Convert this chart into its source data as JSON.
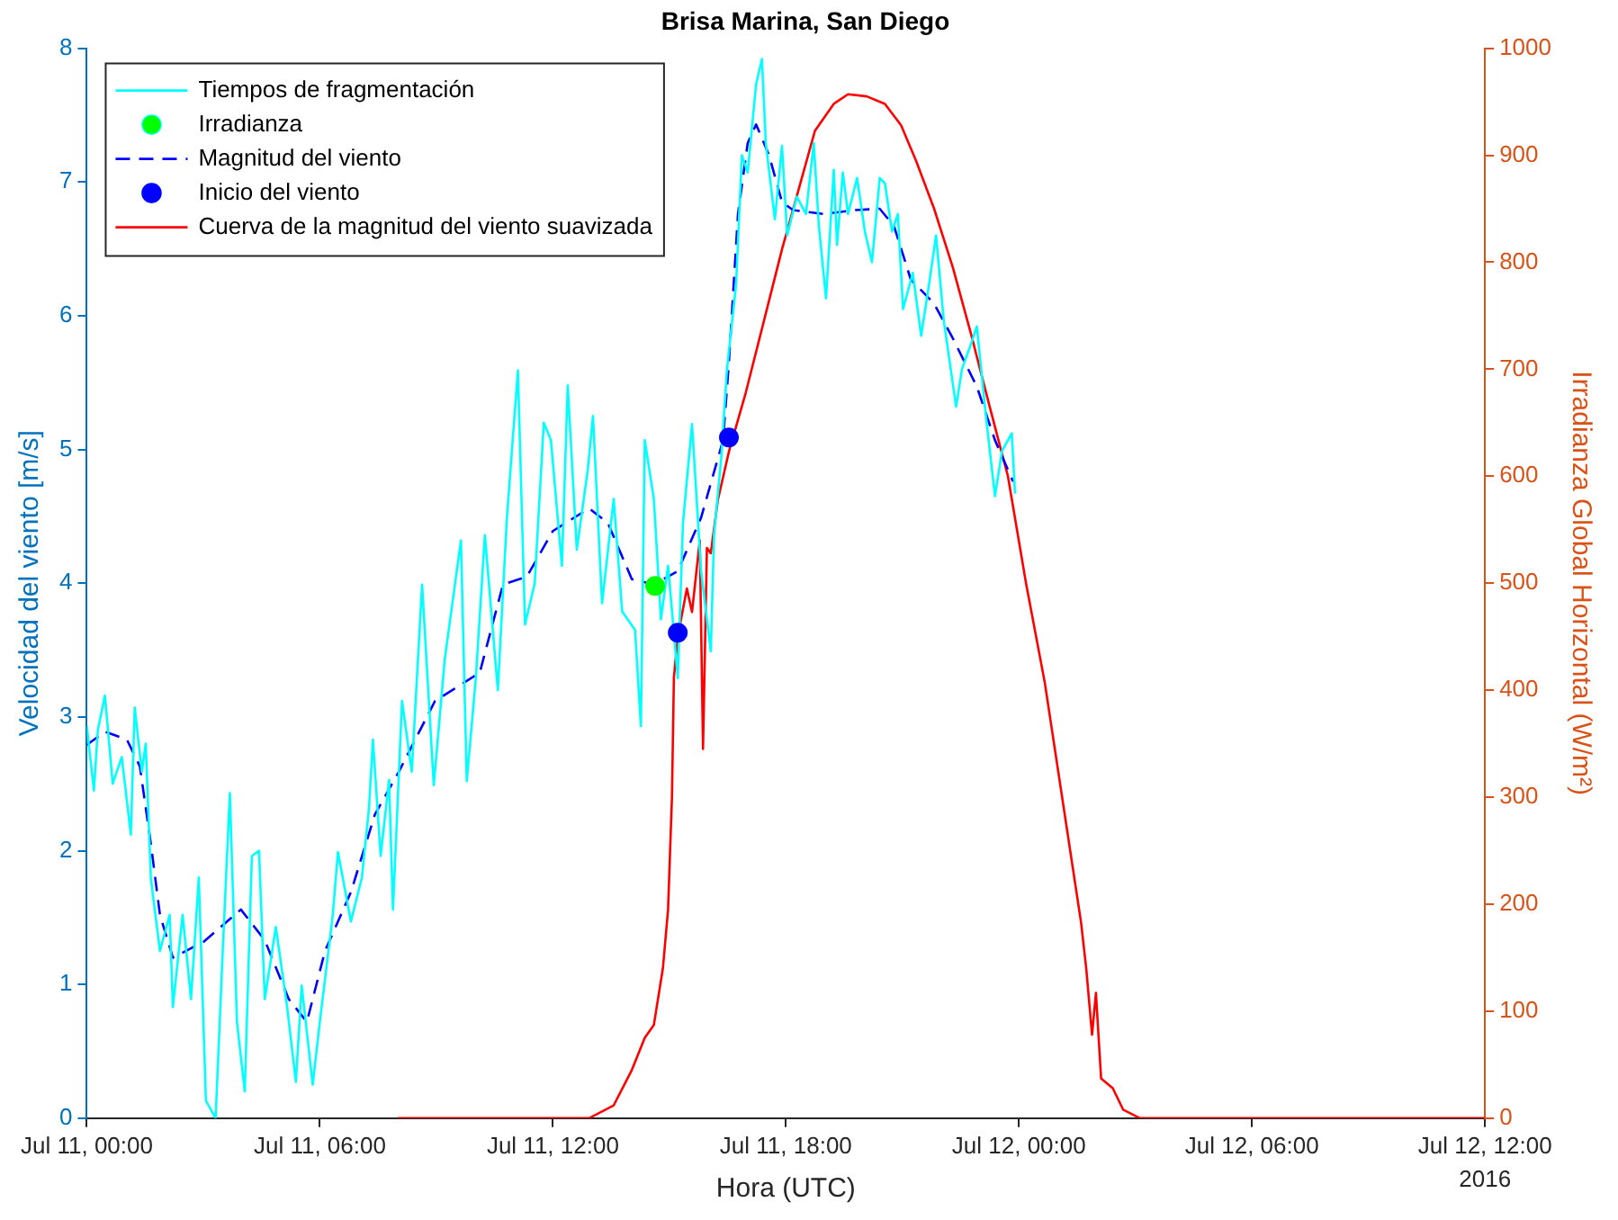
{
  "chart_data": {
    "type": "line",
    "title": "Brisa Marina, San Diego",
    "xlabel": "Hora (UTC)",
    "ylabel": "Velocidad del viento [m/s]",
    "y2label": "Irradianza Global Horizontal (W/m²)",
    "xlim": [
      "2016-07-11T00:00",
      "2016-07-12T12:00"
    ],
    "xticks": [
      {
        "value": "2016-07-11T00:00",
        "label": "Jul 11, 00:00"
      },
      {
        "value": "2016-07-11T06:00",
        "label": "Jul 11, 06:00"
      },
      {
        "value": "2016-07-11T12:00",
        "label": "Jul 11, 12:00"
      },
      {
        "value": "2016-07-11T18:00",
        "label": "Jul 11, 18:00"
      },
      {
        "value": "2016-07-12T00:00",
        "label": "Jul 12, 00:00"
      },
      {
        "value": "2016-07-12T06:00",
        "label": "Jul 12, 06:00"
      },
      {
        "value": "2016-07-12T12:00",
        "label": "Jul 12, 12:00"
      }
    ],
    "ylim": [
      0,
      8
    ],
    "yticks": [
      0,
      1,
      2,
      3,
      4,
      5,
      6,
      7,
      8
    ],
    "y2lim": [
      0,
      1000
    ],
    "y2ticks": [
      0,
      100,
      200,
      300,
      400,
      500,
      600,
      700,
      800,
      900,
      1000
    ],
    "grid": false,
    "legend": "top left",
    "marker": "none",
    "line_style": "solid",
    "annotations": [
      "2016"
    ],
    "series": [
      {
        "name": "Tiempos de fragmentación",
        "color": "#00ffff",
        "x": [
          "2016-07-11T00:00",
          "2016-07-11T00:11",
          "2016-07-11T00:17",
          "2016-07-11T00:28",
          "2016-07-11T00:40",
          "2016-07-11T00:54",
          "2016-07-11T01:08",
          "2016-07-11T01:14",
          "2016-07-11T01:25",
          "2016-07-11T01:31",
          "2016-07-11T01:39",
          "2016-07-11T01:53",
          "2016-07-11T02:08",
          "2016-07-11T02:13",
          "2016-07-11T02:28",
          "2016-07-11T02:41",
          "2016-07-11T02:53",
          "2016-07-11T03:04",
          "2016-07-11T03:19",
          "2016-07-11T03:30",
          "2016-07-11T03:41",
          "2016-07-11T03:52",
          "2016-07-11T04:04",
          "2016-07-11T04:15",
          "2016-07-11T04:26",
          "2016-07-11T04:35",
          "2016-07-11T04:52",
          "2016-07-11T05:09",
          "2016-07-11T05:23",
          "2016-07-11T05:32",
          "2016-07-11T05:49",
          "2016-07-11T06:00",
          "2016-07-11T06:20",
          "2016-07-11T06:28",
          "2016-07-11T06:48",
          "2016-07-11T07:05",
          "2016-07-11T07:16",
          "2016-07-11T07:22",
          "2016-07-11T07:34",
          "2016-07-11T07:47",
          "2016-07-11T07:53",
          "2016-07-11T08:07",
          "2016-07-11T08:22",
          "2016-07-11T08:38",
          "2016-07-11T08:56",
          "2016-07-11T09:13",
          "2016-07-11T09:38",
          "2016-07-11T09:47",
          "2016-07-11T10:01",
          "2016-07-11T10:15",
          "2016-07-11T10:35",
          "2016-07-11T10:49",
          "2016-07-11T11:06",
          "2016-07-11T11:17",
          "2016-07-11T11:32",
          "2016-07-11T11:46",
          "2016-07-11T11:57",
          "2016-07-11T12:14",
          "2016-07-11T12:23",
          "2016-07-11T12:37",
          "2016-07-11T12:54",
          "2016-07-11T13:02",
          "2016-07-11T13:16",
          "2016-07-11T13:34",
          "2016-07-11T13:47",
          "2016-07-11T14:07",
          "2016-07-11T14:16",
          "2016-07-11T14:22",
          "2016-07-11T14:36",
          "2016-07-11T14:47",
          "2016-07-11T14:58",
          "2016-07-11T15:13",
          "2016-07-11T15:21",
          "2016-07-11T15:35",
          "2016-07-11T15:49",
          "2016-07-11T16:04",
          "2016-07-11T16:09",
          "2016-07-11T16:20",
          "2016-07-11T16:29",
          "2016-07-11T16:43",
          "2016-07-11T16:52",
          "2016-07-11T17:01",
          "2016-07-11T17:14",
          "2016-07-11T17:23",
          "2016-07-11T17:29",
          "2016-07-11T17:43",
          "2016-07-11T17:54",
          "2016-07-11T18:02",
          "2016-07-11T18:17",
          "2016-07-11T18:31",
          "2016-07-11T18:43",
          "2016-07-11T18:51",
          "2016-07-11T19:02",
          "2016-07-11T19:14",
          "2016-07-11T19:19",
          "2016-07-11T19:28",
          "2016-07-11T19:36",
          "2016-07-11T19:50",
          "2016-07-11T20:02",
          "2016-07-11T20:13",
          "2016-07-11T20:25",
          "2016-07-11T20:33",
          "2016-07-11T20:44",
          "2016-07-11T20:53",
          "2016-07-11T21:01",
          "2016-07-11T21:16",
          "2016-07-11T21:29",
          "2016-07-11T21:41",
          "2016-07-11T21:52",
          "2016-07-11T22:04",
          "2016-07-11T22:23",
          "2016-07-11T22:32",
          "2016-07-11T22:46",
          "2016-07-11T22:55",
          "2016-07-11T23:09",
          "2016-07-11T23:23",
          "2016-07-11T23:34",
          "2016-07-11T23:49",
          "2016-07-11T23:54"
        ],
        "values": [
          2.93,
          2.45,
          2.9,
          3.16,
          2.5,
          2.7,
          2.12,
          3.07,
          2.59,
          2.8,
          1.79,
          1.25,
          1.52,
          0.83,
          1.52,
          0.89,
          1.8,
          0.13,
          0,
          1.25,
          2.43,
          0.72,
          0.2,
          1.96,
          2.0,
          0.89,
          1.43,
          0.85,
          0.27,
          0.99,
          0.25,
          0.72,
          1.52,
          1.99,
          1.47,
          1.8,
          2.32,
          2.83,
          1.96,
          2.53,
          1.56,
          3.12,
          2.59,
          3.99,
          2.49,
          3.43,
          4.32,
          2.52,
          3.29,
          4.36,
          3.2,
          4.49,
          5.59,
          3.69,
          4.0,
          5.2,
          5.07,
          4.13,
          5.48,
          4.25,
          4.85,
          5.25,
          3.85,
          4.63,
          3.79,
          3.65,
          2.93,
          5.07,
          4.63,
          3.73,
          4.13,
          3.29,
          4.45,
          5.19,
          4.09,
          3.49,
          4.36,
          4.93,
          5.6,
          6.23,
          7.2,
          7.07,
          7.73,
          7.92,
          7.29,
          6.72,
          7.27,
          6.6,
          6.89,
          6.76,
          7.29,
          6.67,
          6.13,
          7.09,
          6.53,
          7.07,
          6.76,
          7.03,
          6.63,
          6.4,
          7.03,
          6.99,
          6.63,
          6.76,
          6.05,
          6.32,
          5.85,
          6.23,
          6.6,
          5.96,
          5.32,
          5.6,
          5.79,
          5.92,
          5.25,
          4.65,
          4.99,
          5.12,
          4.67
        ]
      },
      {
        "name": "Irradianza",
        "type": "scatter",
        "marker": "circle",
        "color": "#00ff00",
        "x": [
          "2016-07-11T14:38"
        ],
        "values": [
          3.98
        ]
      },
      {
        "name": "Magnitud del viento",
        "line_style": "dashed",
        "color": "#0000ff",
        "x": [
          "2016-07-11T00:00",
          "2016-07-11T00:28",
          "2016-07-11T01:02",
          "2016-07-11T01:22",
          "2016-07-11T01:39",
          "2016-07-11T01:53",
          "2016-07-11T02:13",
          "2016-07-11T03:01",
          "2016-07-11T03:58",
          "2016-07-11T04:35",
          "2016-07-11T05:12",
          "2016-07-11T05:40",
          "2016-07-11T06:08",
          "2016-07-11T06:48",
          "2016-07-11T07:25",
          "2016-07-11T08:02",
          "2016-07-11T08:58",
          "2016-07-11T10:07",
          "2016-07-11T10:43",
          "2016-07-11T11:20",
          "2016-07-11T12:00",
          "2016-07-11T12:56",
          "2016-07-11T13:25",
          "2016-07-11T14:02",
          "2016-07-11T14:36",
          "2016-07-11T15:13",
          "2016-07-11T15:49",
          "2016-07-11T16:23",
          "2016-07-11T16:32",
          "2016-07-11T16:46",
          "2016-07-11T17:01",
          "2016-07-11T17:14",
          "2016-07-11T17:34",
          "2016-07-11T17:54",
          "2016-07-11T18:11",
          "2016-07-11T18:59",
          "2016-07-11T19:47",
          "2016-07-11T20:25",
          "2016-07-11T20:47",
          "2016-07-11T21:13",
          "2016-07-11T21:49",
          "2016-07-11T22:18",
          "2016-07-11T22:55",
          "2016-07-11T23:23",
          "2016-07-11T23:51"
        ],
        "values": [
          2.79,
          2.89,
          2.83,
          2.63,
          2.05,
          1.52,
          1.2,
          1.32,
          1.56,
          1.33,
          0.89,
          0.72,
          1.25,
          1.69,
          2.27,
          2.59,
          3.12,
          3.33,
          3.99,
          4.05,
          4.39,
          4.56,
          4.45,
          4.03,
          3.99,
          4.09,
          4.49,
          5.07,
          5.65,
          6.76,
          7.29,
          7.43,
          7.2,
          6.85,
          6.79,
          6.76,
          6.79,
          6.8,
          6.67,
          6.27,
          6.09,
          5.83,
          5.47,
          5.07,
          4.76
        ]
      },
      {
        "name": "Inicio del viento",
        "type": "scatter",
        "marker": "circle",
        "color": "#0000ff",
        "x": [
          "2016-07-11T15:13",
          "2016-07-11T16:32"
        ],
        "values": [
          3.63,
          5.09
        ]
      },
      {
        "name": "Cuerva de la magnitud del viento suavizada",
        "axis": "y2",
        "color": "#ff0000",
        "x": [
          "2016-07-11T08:00",
          "2016-07-11T12:56",
          "2016-07-11T13:34",
          "2016-07-11T14:02",
          "2016-07-11T14:22",
          "2016-07-11T14:36",
          "2016-07-11T14:50",
          "2016-07-11T14:58",
          "2016-07-11T15:04",
          "2016-07-11T15:07",
          "2016-07-11T15:13",
          "2016-07-11T15:27",
          "2016-07-11T15:35",
          "2016-07-11T15:47",
          "2016-07-11T15:52",
          "2016-07-11T15:58",
          "2016-07-11T16:04",
          "2016-07-11T16:15",
          "2016-07-11T16:32",
          "2016-07-11T16:58",
          "2016-07-11T17:26",
          "2016-07-11T17:54",
          "2016-07-11T18:22",
          "2016-07-11T18:45",
          "2016-07-11T19:14",
          "2016-07-11T19:36",
          "2016-07-11T20:05",
          "2016-07-11T20:33",
          "2016-07-11T20:58",
          "2016-07-11T21:21",
          "2016-07-11T21:49",
          "2016-07-11T22:18",
          "2016-07-11T22:46",
          "2016-07-11T23:14",
          "2016-07-11T23:43",
          "2016-07-12T00:11",
          "2016-07-12T00:40",
          "2016-07-12T01:08",
          "2016-07-12T01:36",
          "2016-07-12T01:44",
          "2016-07-12T01:53",
          "2016-07-12T01:59",
          "2016-07-12T02:07",
          "2016-07-12T02:25",
          "2016-07-12T02:41",
          "2016-07-12T03:07",
          "2016-07-12T12:00"
        ],
        "values": [
          0,
          0,
          12,
          45,
          75,
          87,
          140,
          195,
          300,
          412,
          450,
          495,
          473,
          540,
          345,
          533,
          528,
          578,
          623,
          678,
          745,
          812,
          873,
          923,
          948,
          957,
          955,
          948,
          928,
          895,
          850,
          795,
          733,
          667,
          600,
          500,
          407,
          295,
          183,
          140,
          78,
          117,
          37,
          28,
          8,
          0,
          0
        ]
      }
    ]
  }
}
